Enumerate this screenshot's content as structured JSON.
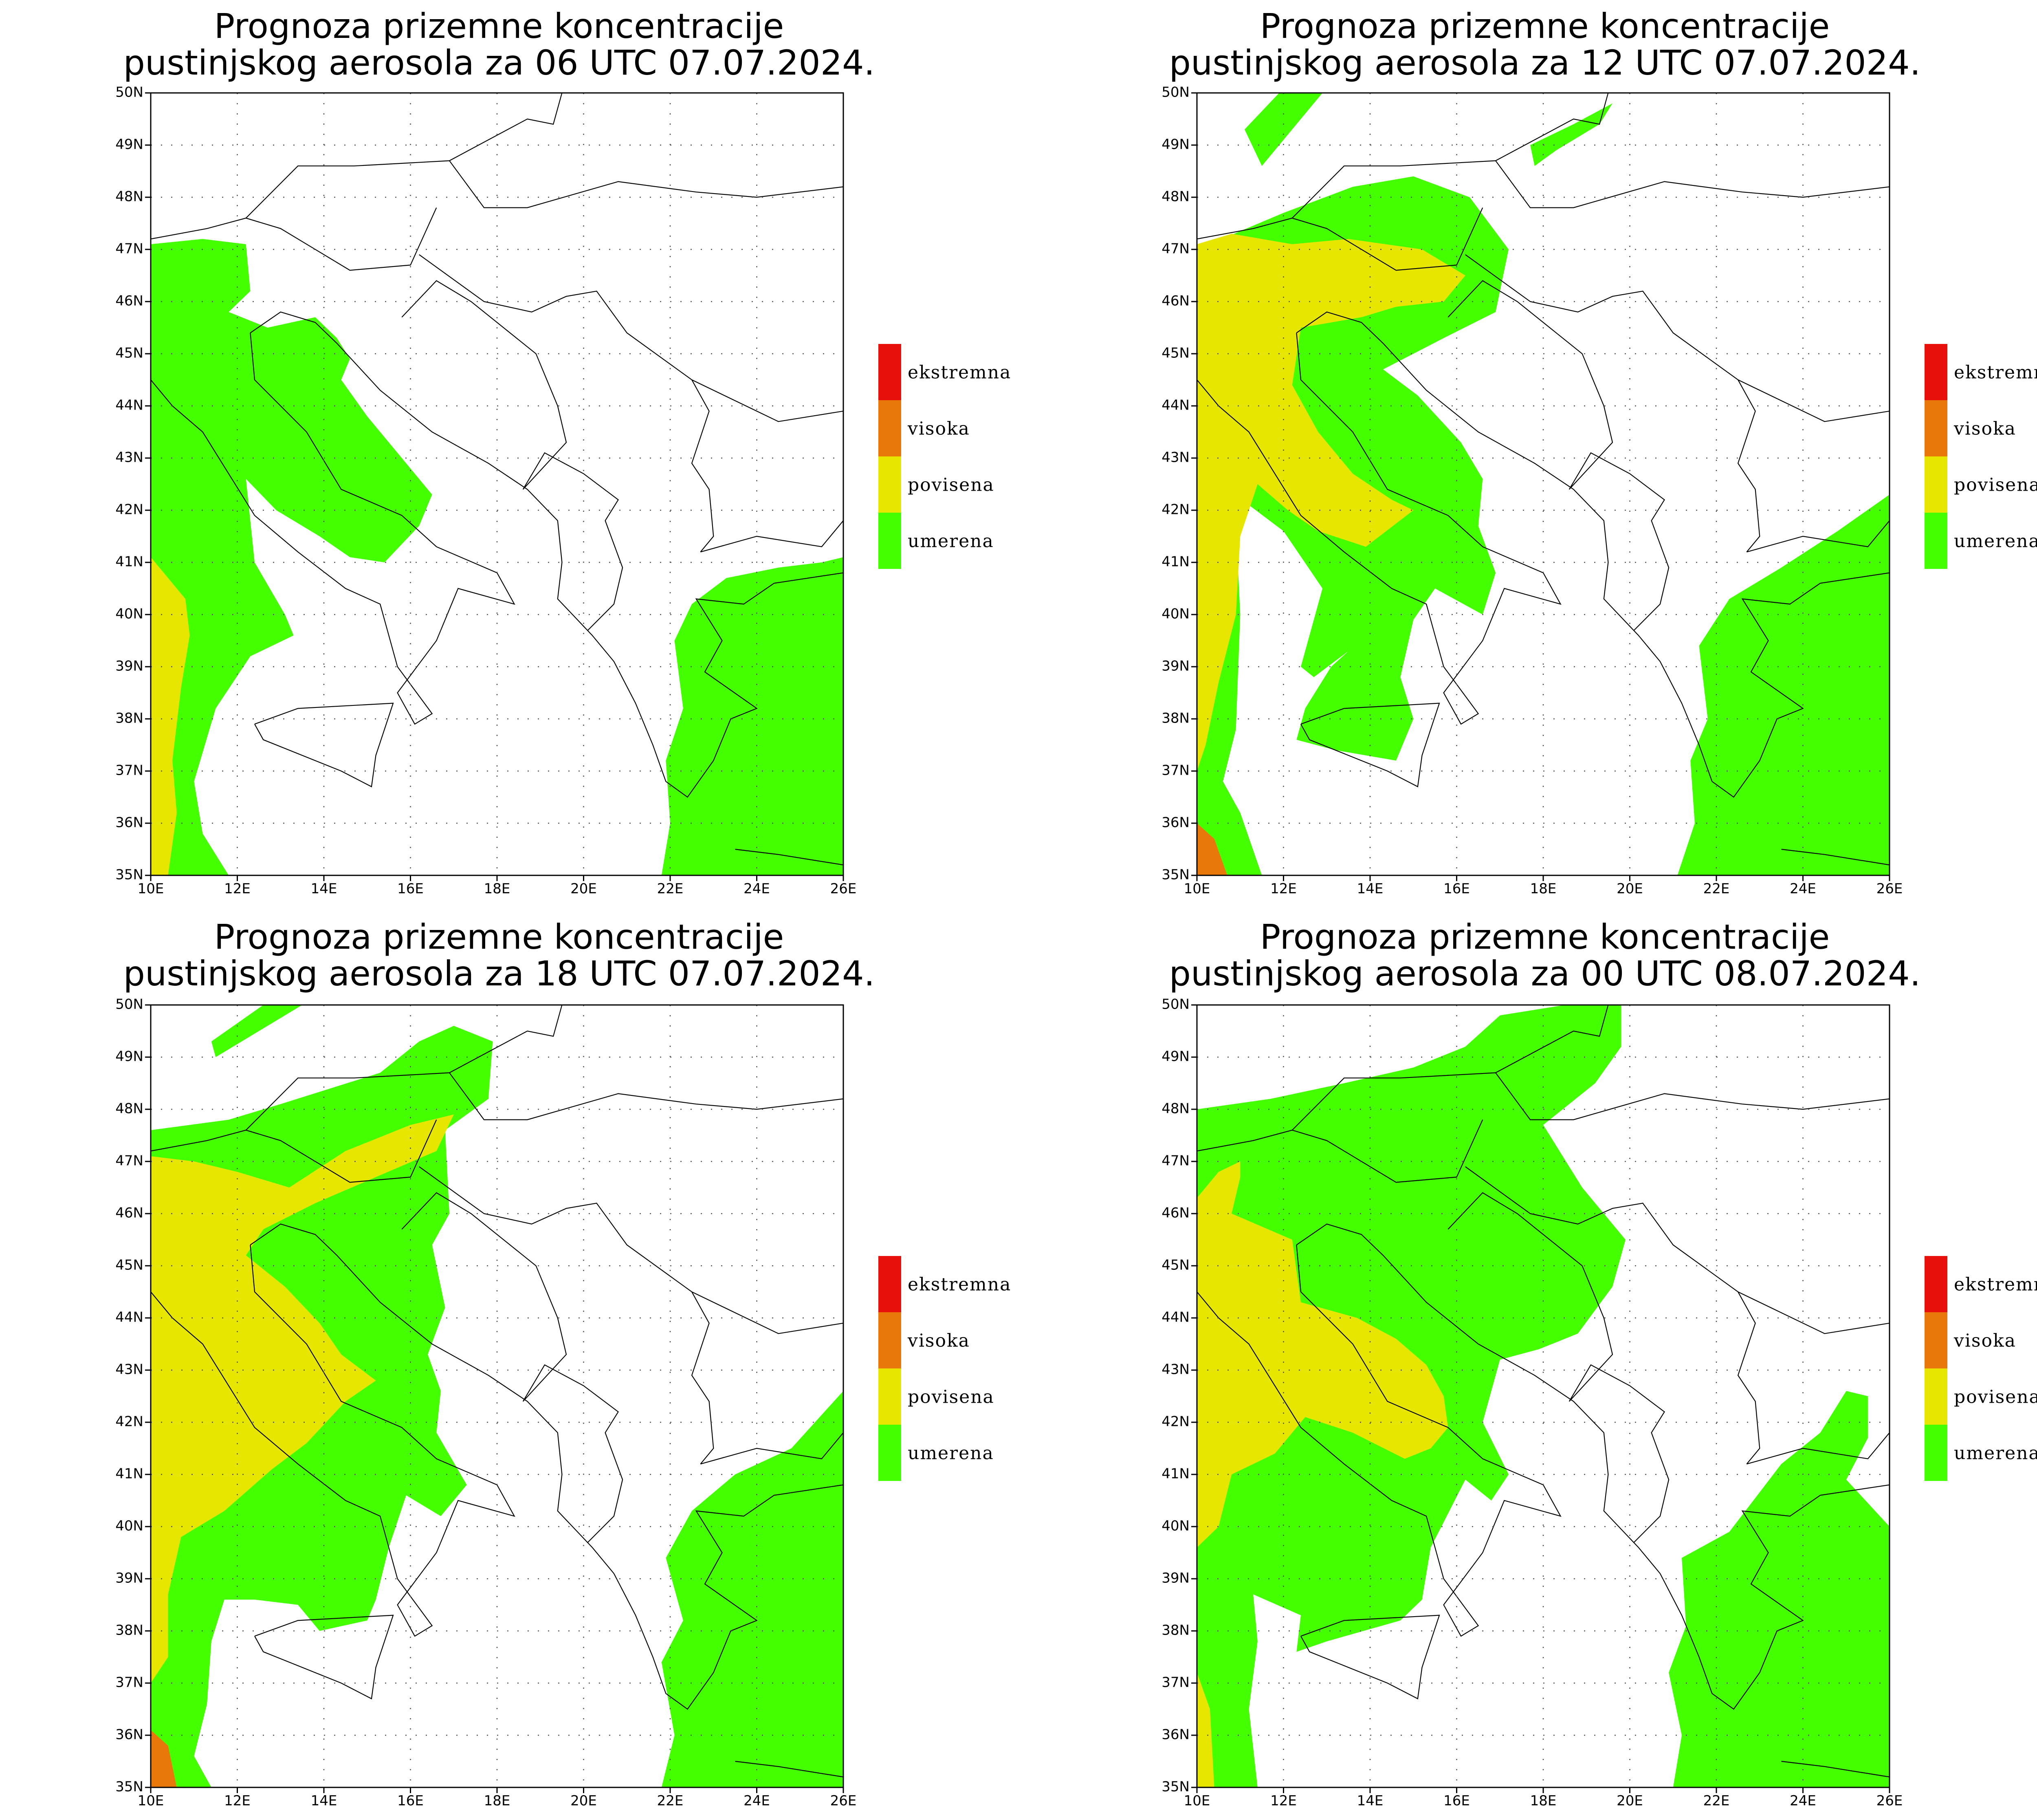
{
  "maps": [
    {
      "title_line1": "Prognoza prizemne koncentracije",
      "title_line2": "pustinjskog aerosola za 06 UTC 07.07.2024."
    },
    {
      "title_line1": "Prognoza prizemne koncentracije",
      "title_line2": "pustinjskog aerosola za 12 UTC 07.07.2024."
    },
    {
      "title_line1": "Prognoza prizemne koncentracije",
      "title_line2": "pustinjskog aerosola za 18 UTC 07.07.2024."
    },
    {
      "title_line1": "Prognoza prizemne koncentracije",
      "title_line2": "pustinjskog aerosola za 00 UTC 08.07.2024."
    }
  ],
  "axes": {
    "lon_labels": [
      "10E",
      "12E",
      "14E",
      "16E",
      "18E",
      "20E",
      "22E",
      "24E",
      "26E"
    ],
    "lat_labels": [
      "35N",
      "36N",
      "37N",
      "38N",
      "39N",
      "40N",
      "41N",
      "42N",
      "43N",
      "44N",
      "45N",
      "46N",
      "47N",
      "48N",
      "49N",
      "50N"
    ],
    "lon_range": [
      10,
      26
    ],
    "lat_range": [
      35,
      50
    ],
    "grid": "dotted"
  },
  "legend": [
    {
      "label": "ekstremna",
      "color": "#e8100a"
    },
    {
      "label": "visoka",
      "color": "#e8780a"
    },
    {
      "label": "povisena",
      "color": "#e6e600"
    },
    {
      "label": "umerena",
      "color": "#44ff00"
    }
  ]
}
